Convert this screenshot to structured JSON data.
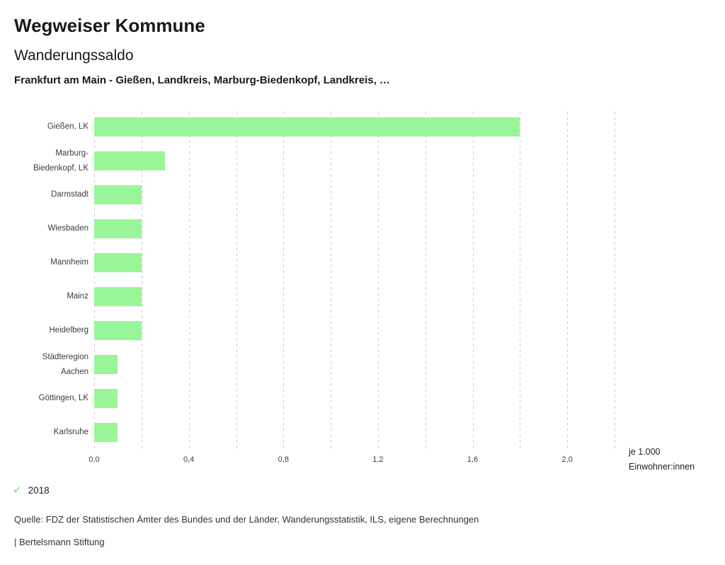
{
  "header": {
    "app_title": "Wegweiser Kommune",
    "chart_title": "Wanderungssaldo",
    "subtitle": "Frankfurt am Main - Gießen, Landkreis, Marburg-Biedenkopf, Landkreis, …"
  },
  "chart_data": {
    "type": "bar",
    "orientation": "horizontal",
    "title": "Wanderungssaldo",
    "categories": [
      "Gießen, LK",
      "Marburg-Biedenkopf, LK",
      "Darmstadt",
      "Wiesbaden",
      "Mannheim",
      "Mainz",
      "Heidelberg",
      "Städteregion Aachen",
      "Göttingen, LK",
      "Karlsruhe"
    ],
    "values": [
      1.8,
      0.3,
      0.2,
      0.2,
      0.2,
      0.2,
      0.2,
      0.1,
      0.1,
      0.1
    ],
    "series_year": "2018",
    "xlabel": "je 1.000\nEinwohner:innen",
    "xlim": [
      0,
      2.2
    ],
    "grid_step": 0.2,
    "grid_on": true,
    "x_ticks": [
      {
        "value": 0.0,
        "label": "0,0"
      },
      {
        "value": 0.4,
        "label": "0,4"
      },
      {
        "value": 0.8,
        "label": "0,8"
      },
      {
        "value": 1.2,
        "label": "1,2"
      },
      {
        "value": 1.6,
        "label": "1,6"
      },
      {
        "value": 2.0,
        "label": "2,0"
      }
    ],
    "bar_color": "#98f698",
    "grid_color": "#cfcfcf"
  },
  "legend": {
    "year": "2018",
    "check_icon": "✔",
    "check_color": "#90ee90"
  },
  "footer": {
    "source": "Quelle: FDZ der Statistischen Ämter des Bundes und der Länder, Wanderungsstatistik, ILS, eigene Berechnungen",
    "branding": "| Bertelsmann Stiftung"
  }
}
